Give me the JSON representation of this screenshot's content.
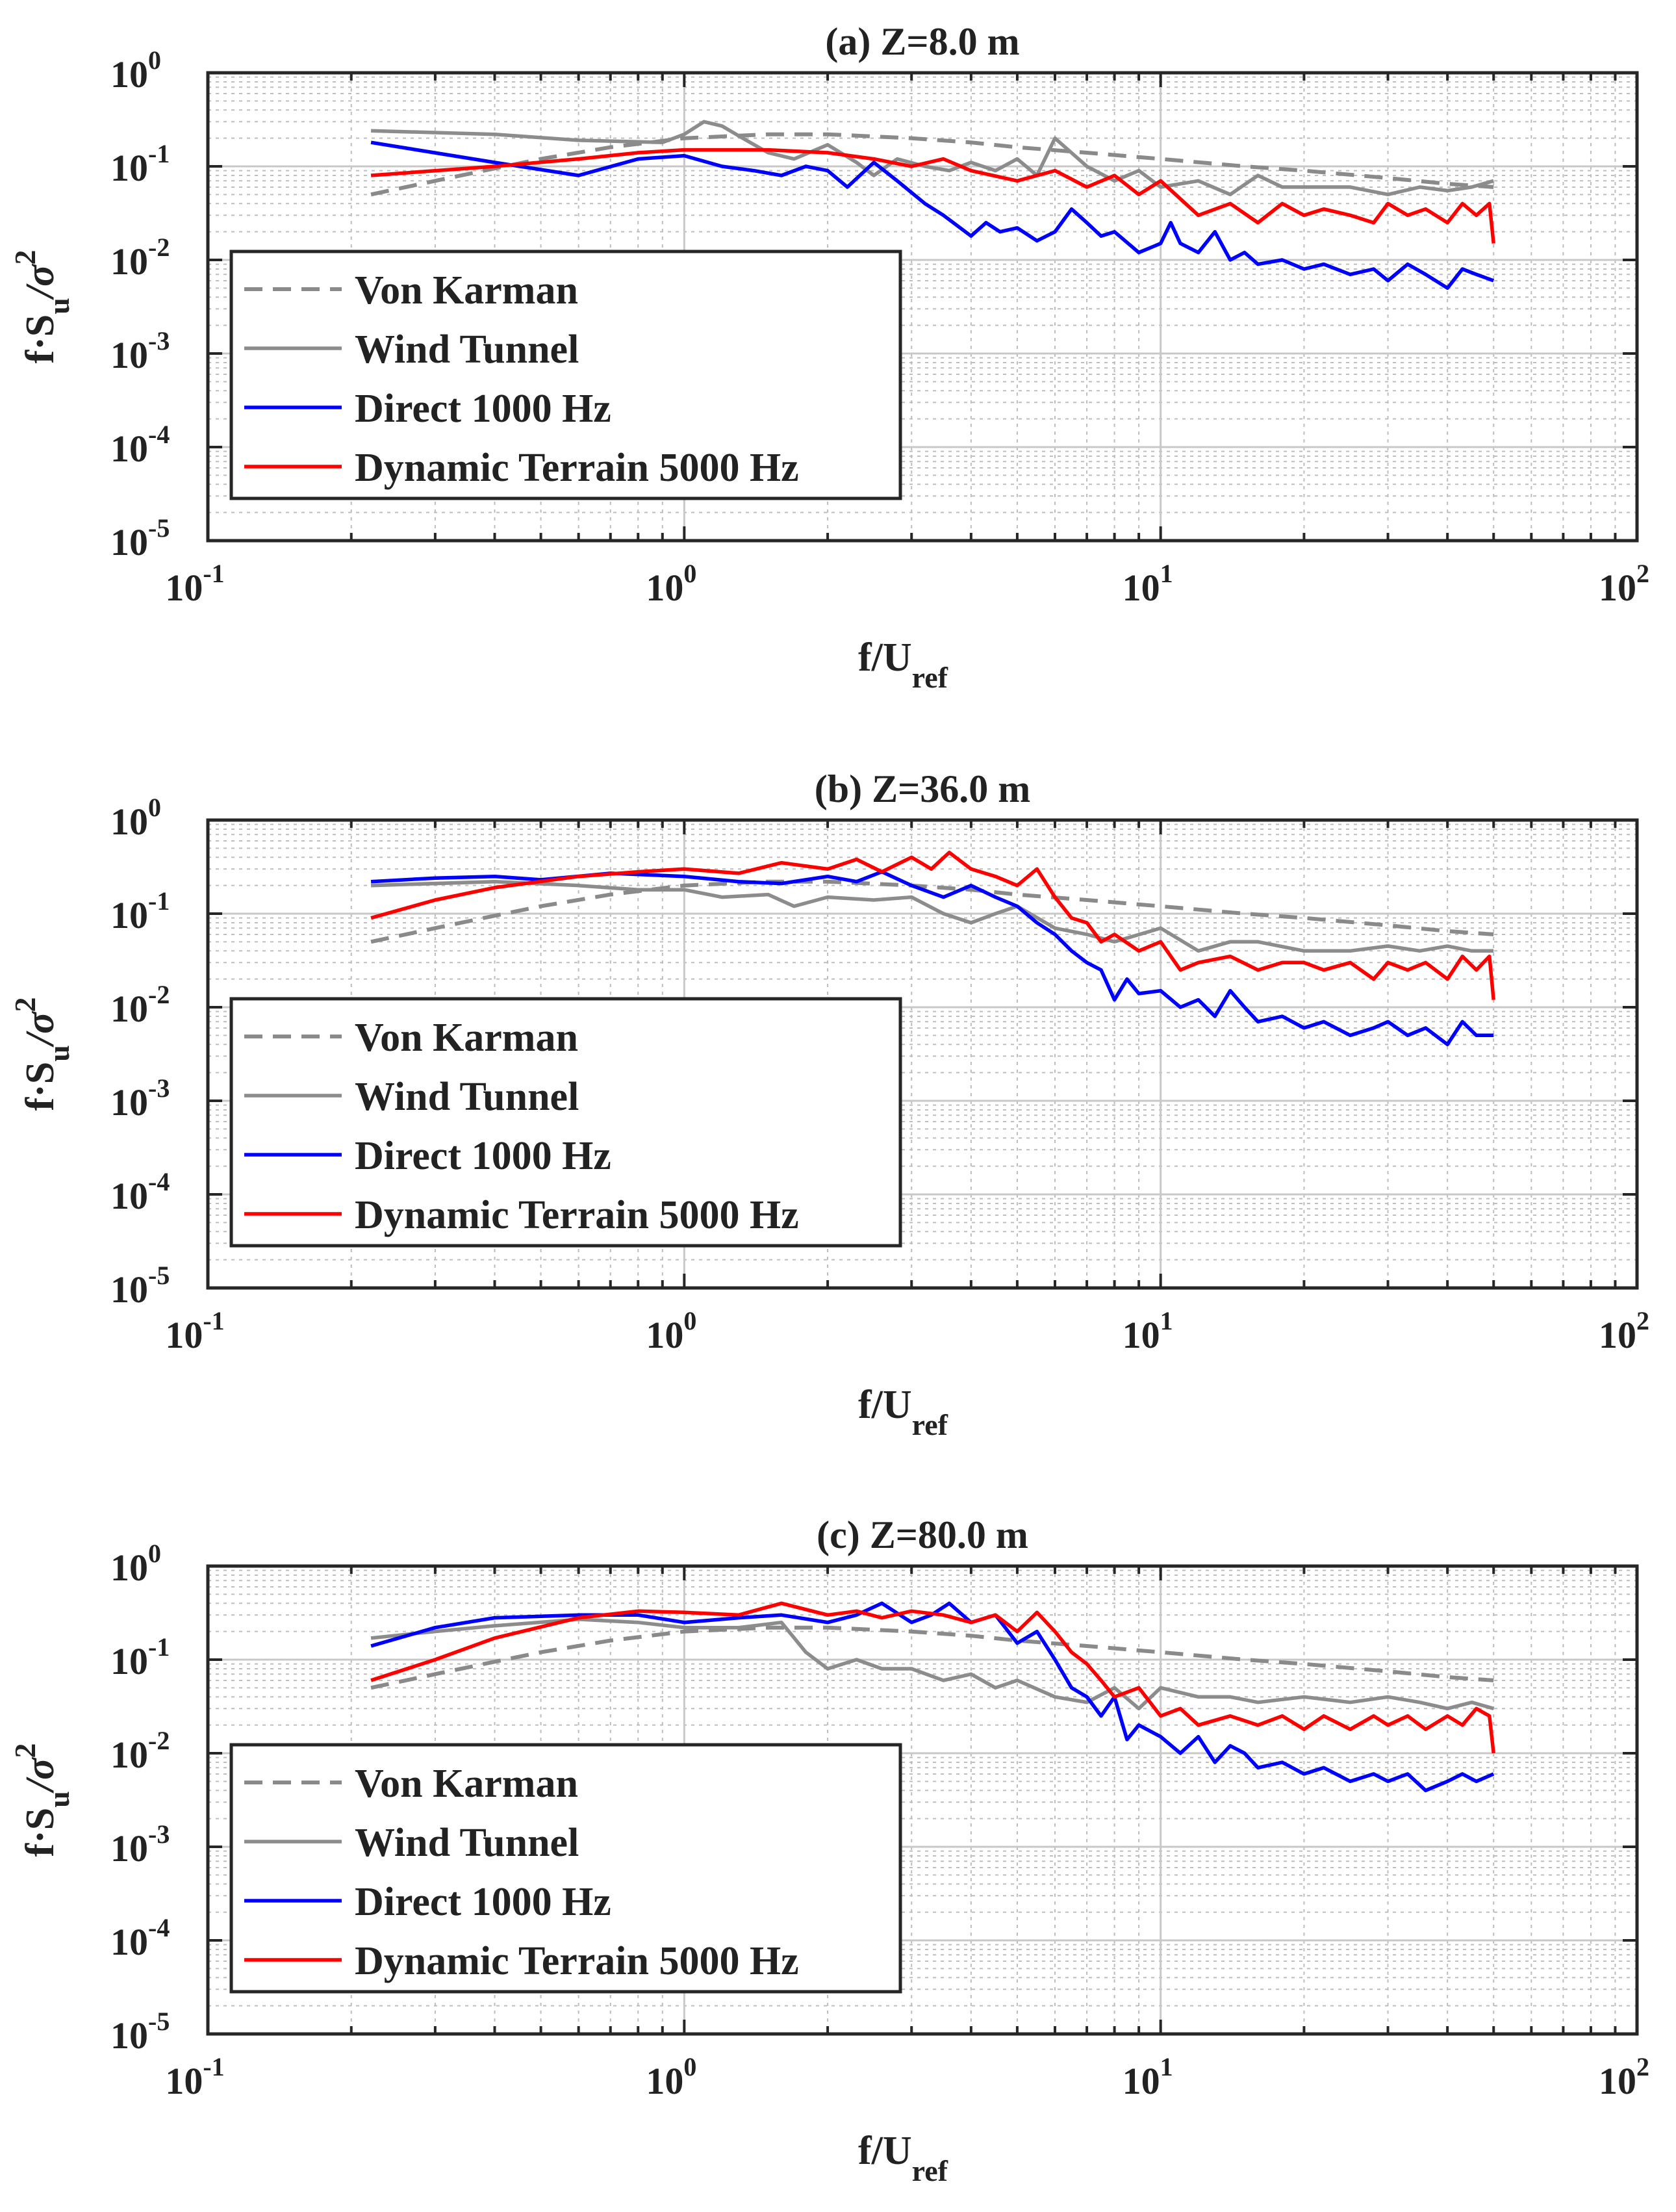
{
  "colors": {
    "von_karman": "#8a8a8a",
    "wind_tunnel": "#8c8c8c",
    "direct": "#0000ff",
    "dynamic": "#ff0000",
    "axes": "#262626",
    "grid": "#c8c8c8"
  },
  "chart_data": [
    {
      "type": "line",
      "title": "(a) Z=8.0 m",
      "xlabel": "f/U",
      "xlabel_sub": "ref",
      "ylabel": "f·S",
      "ylabel_sub": "u",
      "ylabel_tail": "/σ",
      "ylabel_sup": "2",
      "xscale": "log",
      "yscale": "log",
      "xlim": [
        0.1,
        100
      ],
      "ylim": [
        1e-05,
        1
      ],
      "grid": true,
      "legend_position": "bottom-left",
      "xticks": [
        {
          "base": "10",
          "exp": "-1"
        },
        {
          "base": "10",
          "exp": "0"
        },
        {
          "base": "10",
          "exp": "1"
        },
        {
          "base": "10",
          "exp": "2"
        }
      ],
      "yticks": [
        {
          "base": "10",
          "exp": "-5"
        },
        {
          "base": "10",
          "exp": "-4"
        },
        {
          "base": "10",
          "exp": "-3"
        },
        {
          "base": "10",
          "exp": "-2"
        },
        {
          "base": "10",
          "exp": "-1"
        },
        {
          "base": "10",
          "exp": "0"
        }
      ],
      "series": [
        {
          "name": "Von Karman",
          "style": "dashed",
          "color_key": "von_karman",
          "x": [
            0.22,
            0.3,
            0.4,
            0.5,
            0.7,
            1.0,
            1.5,
            2.0,
            3.0,
            4.0,
            5.0,
            7.0,
            10,
            15,
            20,
            30,
            40,
            50
          ],
          "y": [
            0.05,
            0.07,
            0.095,
            0.12,
            0.16,
            0.2,
            0.22,
            0.22,
            0.2,
            0.18,
            0.16,
            0.14,
            0.12,
            0.1,
            0.09,
            0.075,
            0.065,
            0.06
          ]
        },
        {
          "name": "Wind Tunnel",
          "style": "solid",
          "color_key": "wind_tunnel",
          "x": [
            0.22,
            0.4,
            0.6,
            0.9,
            1.0,
            1.1,
            1.2,
            1.35,
            1.5,
            1.7,
            2.0,
            2.3,
            2.5,
            2.8,
            3.2,
            3.6,
            4.0,
            4.5,
            5.0,
            5.5,
            6.0,
            7.0,
            8.0,
            9.0,
            10,
            12,
            14,
            16,
            18,
            20,
            25,
            30,
            35,
            40,
            45,
            50
          ],
          "y": [
            0.24,
            0.22,
            0.19,
            0.18,
            0.22,
            0.3,
            0.27,
            0.19,
            0.14,
            0.12,
            0.17,
            0.11,
            0.08,
            0.12,
            0.1,
            0.09,
            0.11,
            0.09,
            0.12,
            0.08,
            0.2,
            0.1,
            0.07,
            0.09,
            0.06,
            0.07,
            0.05,
            0.08,
            0.06,
            0.06,
            0.06,
            0.05,
            0.06,
            0.055,
            0.06,
            0.07
          ]
        },
        {
          "name": "Direct 1000 Hz",
          "style": "solid",
          "color_key": "direct",
          "x": [
            0.22,
            0.4,
            0.6,
            0.8,
            1.0,
            1.2,
            1.4,
            1.6,
            1.8,
            2.0,
            2.2,
            2.5,
            2.8,
            3.2,
            3.5,
            4.0,
            4.3,
            4.6,
            5.0,
            5.5,
            6.0,
            6.5,
            7.0,
            7.5,
            8.0,
            9.0,
            10,
            10.5,
            11,
            12,
            13,
            14,
            15,
            16,
            18,
            20,
            22,
            25,
            28,
            30,
            33,
            36,
            40,
            43,
            46,
            50
          ],
          "y": [
            0.18,
            0.11,
            0.08,
            0.12,
            0.13,
            0.1,
            0.09,
            0.08,
            0.1,
            0.09,
            0.06,
            0.11,
            0.07,
            0.04,
            0.03,
            0.018,
            0.025,
            0.02,
            0.022,
            0.016,
            0.02,
            0.035,
            0.025,
            0.018,
            0.02,
            0.012,
            0.015,
            0.025,
            0.015,
            0.012,
            0.02,
            0.01,
            0.012,
            0.009,
            0.01,
            0.008,
            0.009,
            0.007,
            0.008,
            0.006,
            0.009,
            0.007,
            0.005,
            0.008,
            0.007,
            0.006
          ]
        },
        {
          "name": "Dynamic Terrain 5000 Hz",
          "style": "solid",
          "color_key": "dynamic",
          "x": [
            0.22,
            0.4,
            0.6,
            0.8,
            1.0,
            1.5,
            2.0,
            2.5,
            3.0,
            3.5,
            4.0,
            5.0,
            6.0,
            7.0,
            8.0,
            9.0,
            10,
            12,
            14,
            16,
            18,
            20,
            22,
            25,
            28,
            30,
            33,
            36,
            40,
            43,
            46,
            49,
            50
          ],
          "y": [
            0.08,
            0.1,
            0.12,
            0.14,
            0.15,
            0.15,
            0.14,
            0.12,
            0.1,
            0.12,
            0.09,
            0.07,
            0.09,
            0.06,
            0.08,
            0.05,
            0.07,
            0.03,
            0.04,
            0.025,
            0.04,
            0.03,
            0.035,
            0.03,
            0.025,
            0.04,
            0.03,
            0.035,
            0.025,
            0.04,
            0.03,
            0.04,
            0.015
          ]
        }
      ]
    },
    {
      "type": "line",
      "title": "(b) Z=36.0 m",
      "xlabel": "f/U",
      "xlabel_sub": "ref",
      "ylabel": "f·S",
      "ylabel_sub": "u",
      "ylabel_tail": "/σ",
      "ylabel_sup": "2",
      "xscale": "log",
      "yscale": "log",
      "xlim": [
        0.1,
        100
      ],
      "ylim": [
        1e-05,
        1
      ],
      "grid": true,
      "legend_position": "bottom-left",
      "xticks": [
        {
          "base": "10",
          "exp": "-1"
        },
        {
          "base": "10",
          "exp": "0"
        },
        {
          "base": "10",
          "exp": "1"
        },
        {
          "base": "10",
          "exp": "2"
        }
      ],
      "yticks": [
        {
          "base": "10",
          "exp": "-5"
        },
        {
          "base": "10",
          "exp": "-4"
        },
        {
          "base": "10",
          "exp": "-3"
        },
        {
          "base": "10",
          "exp": "-2"
        },
        {
          "base": "10",
          "exp": "-1"
        },
        {
          "base": "10",
          "exp": "0"
        }
      ],
      "series": [
        {
          "name": "Von Karman",
          "style": "dashed",
          "color_key": "von_karman",
          "x": [
            0.22,
            0.3,
            0.4,
            0.5,
            0.7,
            1.0,
            1.5,
            2.0,
            3.0,
            4.0,
            5.0,
            7.0,
            10,
            15,
            20,
            30,
            40,
            50
          ],
          "y": [
            0.05,
            0.07,
            0.095,
            0.12,
            0.16,
            0.2,
            0.22,
            0.22,
            0.2,
            0.18,
            0.16,
            0.14,
            0.12,
            0.1,
            0.09,
            0.075,
            0.065,
            0.06
          ]
        },
        {
          "name": "Wind Tunnel",
          "style": "solid",
          "color_key": "wind_tunnel",
          "x": [
            0.22,
            0.4,
            0.6,
            0.8,
            1.0,
            1.2,
            1.5,
            1.7,
            2.0,
            2.5,
            3.0,
            3.5,
            4.0,
            4.5,
            5.0,
            6.0,
            7.0,
            8.0,
            10,
            12,
            14,
            16,
            20,
            25,
            30,
            35,
            40,
            45,
            50
          ],
          "y": [
            0.2,
            0.22,
            0.2,
            0.18,
            0.18,
            0.15,
            0.16,
            0.12,
            0.15,
            0.14,
            0.15,
            0.1,
            0.08,
            0.1,
            0.12,
            0.07,
            0.06,
            0.05,
            0.07,
            0.04,
            0.05,
            0.05,
            0.04,
            0.04,
            0.045,
            0.04,
            0.045,
            0.04,
            0.04
          ]
        },
        {
          "name": "Direct 1000 Hz",
          "style": "solid",
          "color_key": "direct",
          "x": [
            0.22,
            0.3,
            0.4,
            0.5,
            0.7,
            1.0,
            1.3,
            1.6,
            2.0,
            2.3,
            2.6,
            3.0,
            3.5,
            4.0,
            4.5,
            5.0,
            5.5,
            6.0,
            6.5,
            7.0,
            7.5,
            8.0,
            8.5,
            9.0,
            10,
            11,
            12,
            13,
            14,
            15,
            16,
            18,
            20,
            22,
            25,
            28,
            30,
            33,
            36,
            40,
            43,
            46,
            50
          ],
          "y": [
            0.22,
            0.24,
            0.25,
            0.23,
            0.27,
            0.25,
            0.22,
            0.21,
            0.25,
            0.22,
            0.28,
            0.2,
            0.15,
            0.2,
            0.15,
            0.12,
            0.08,
            0.06,
            0.04,
            0.03,
            0.025,
            0.012,
            0.02,
            0.014,
            0.015,
            0.01,
            0.012,
            0.008,
            0.015,
            0.01,
            0.007,
            0.008,
            0.006,
            0.007,
            0.005,
            0.006,
            0.007,
            0.005,
            0.006,
            0.004,
            0.007,
            0.005,
            0.005
          ]
        },
        {
          "name": "Dynamic Terrain 5000 Hz",
          "style": "solid",
          "color_key": "dynamic",
          "x": [
            0.22,
            0.3,
            0.4,
            0.6,
            0.8,
            1.0,
            1.3,
            1.6,
            2.0,
            2.3,
            2.6,
            3.0,
            3.3,
            3.6,
            4.0,
            4.5,
            5.0,
            5.5,
            6.0,
            6.5,
            7.0,
            7.5,
            8.0,
            9.0,
            10,
            11,
            12,
            14,
            16,
            18,
            20,
            22,
            25,
            28,
            30,
            33,
            36,
            40,
            43,
            46,
            49,
            50
          ],
          "y": [
            0.09,
            0.14,
            0.19,
            0.25,
            0.28,
            0.3,
            0.27,
            0.35,
            0.3,
            0.38,
            0.28,
            0.4,
            0.3,
            0.45,
            0.3,
            0.25,
            0.2,
            0.3,
            0.15,
            0.09,
            0.08,
            0.05,
            0.06,
            0.04,
            0.05,
            0.025,
            0.03,
            0.035,
            0.025,
            0.03,
            0.03,
            0.025,
            0.03,
            0.02,
            0.03,
            0.025,
            0.03,
            0.02,
            0.035,
            0.025,
            0.035,
            0.012
          ]
        }
      ]
    },
    {
      "type": "line",
      "title": "(c) Z=80.0 m",
      "xlabel": "f/U",
      "xlabel_sub": "ref",
      "ylabel": "f·S",
      "ylabel_sub": "u",
      "ylabel_tail": "/σ",
      "ylabel_sup": "2",
      "xscale": "log",
      "yscale": "log",
      "xlim": [
        0.1,
        100
      ],
      "ylim": [
        1e-05,
        1
      ],
      "grid": true,
      "legend_position": "bottom-left",
      "xticks": [
        {
          "base": "10",
          "exp": "-1"
        },
        {
          "base": "10",
          "exp": "0"
        },
        {
          "base": "10",
          "exp": "1"
        },
        {
          "base": "10",
          "exp": "2"
        }
      ],
      "yticks": [
        {
          "base": "10",
          "exp": "-5"
        },
        {
          "base": "10",
          "exp": "-4"
        },
        {
          "base": "10",
          "exp": "-3"
        },
        {
          "base": "10",
          "exp": "-2"
        },
        {
          "base": "10",
          "exp": "-1"
        },
        {
          "base": "10",
          "exp": "0"
        }
      ],
      "series": [
        {
          "name": "Von Karman",
          "style": "dashed",
          "color_key": "von_karman",
          "x": [
            0.22,
            0.3,
            0.4,
            0.5,
            0.7,
            1.0,
            1.5,
            2.0,
            3.0,
            4.0,
            5.0,
            7.0,
            10,
            15,
            20,
            30,
            40,
            50
          ],
          "y": [
            0.05,
            0.07,
            0.095,
            0.12,
            0.16,
            0.2,
            0.22,
            0.22,
            0.2,
            0.18,
            0.16,
            0.14,
            0.12,
            0.1,
            0.09,
            0.075,
            0.065,
            0.06
          ]
        },
        {
          "name": "Wind Tunnel",
          "style": "solid",
          "color_key": "wind_tunnel",
          "x": [
            0.22,
            0.3,
            0.4,
            0.6,
            0.8,
            1.0,
            1.3,
            1.6,
            1.8,
            2.0,
            2.3,
            2.6,
            3.0,
            3.5,
            4.0,
            4.5,
            5.0,
            6.0,
            7.0,
            8.0,
            9.0,
            10,
            12,
            14,
            16,
            20,
            25,
            30,
            35,
            40,
            45,
            50
          ],
          "y": [
            0.17,
            0.2,
            0.23,
            0.27,
            0.25,
            0.22,
            0.22,
            0.25,
            0.12,
            0.08,
            0.1,
            0.08,
            0.08,
            0.06,
            0.07,
            0.05,
            0.06,
            0.04,
            0.035,
            0.05,
            0.03,
            0.05,
            0.04,
            0.04,
            0.035,
            0.04,
            0.035,
            0.04,
            0.035,
            0.03,
            0.035,
            0.03
          ]
        },
        {
          "name": "Direct 1000 Hz",
          "style": "solid",
          "color_key": "direct",
          "x": [
            0.22,
            0.3,
            0.4,
            0.6,
            0.8,
            1.0,
            1.3,
            1.6,
            2.0,
            2.3,
            2.6,
            3.0,
            3.3,
            3.6,
            4.0,
            4.5,
            5.0,
            5.5,
            6.0,
            6.5,
            7.0,
            7.5,
            8.0,
            8.5,
            9.0,
            10,
            11,
            12,
            13,
            14,
            15,
            16,
            18,
            20,
            22,
            25,
            28,
            30,
            33,
            36,
            40,
            43,
            46,
            50
          ],
          "y": [
            0.14,
            0.22,
            0.28,
            0.3,
            0.3,
            0.25,
            0.28,
            0.3,
            0.25,
            0.3,
            0.4,
            0.25,
            0.3,
            0.4,
            0.25,
            0.3,
            0.15,
            0.2,
            0.1,
            0.05,
            0.04,
            0.025,
            0.04,
            0.014,
            0.02,
            0.015,
            0.01,
            0.015,
            0.008,
            0.012,
            0.01,
            0.007,
            0.008,
            0.006,
            0.007,
            0.005,
            0.006,
            0.005,
            0.006,
            0.004,
            0.005,
            0.006,
            0.005,
            0.006
          ]
        },
        {
          "name": "Dynamic Terrain 5000 Hz",
          "style": "solid",
          "color_key": "dynamic",
          "x": [
            0.22,
            0.3,
            0.4,
            0.6,
            0.8,
            1.0,
            1.3,
            1.6,
            2.0,
            2.3,
            2.6,
            3.0,
            3.5,
            4.0,
            4.5,
            5.0,
            5.5,
            6.0,
            6.5,
            7.0,
            7.5,
            8.0,
            9.0,
            10,
            11,
            12,
            14,
            16,
            18,
            20,
            22,
            25,
            28,
            30,
            33,
            36,
            40,
            43,
            46,
            49,
            50
          ],
          "y": [
            0.06,
            0.1,
            0.17,
            0.28,
            0.33,
            0.32,
            0.3,
            0.4,
            0.3,
            0.33,
            0.28,
            0.33,
            0.3,
            0.25,
            0.3,
            0.2,
            0.32,
            0.2,
            0.12,
            0.09,
            0.06,
            0.04,
            0.05,
            0.025,
            0.03,
            0.02,
            0.025,
            0.02,
            0.025,
            0.018,
            0.025,
            0.018,
            0.025,
            0.02,
            0.025,
            0.018,
            0.025,
            0.02,
            0.03,
            0.025,
            0.01
          ]
        }
      ]
    }
  ]
}
